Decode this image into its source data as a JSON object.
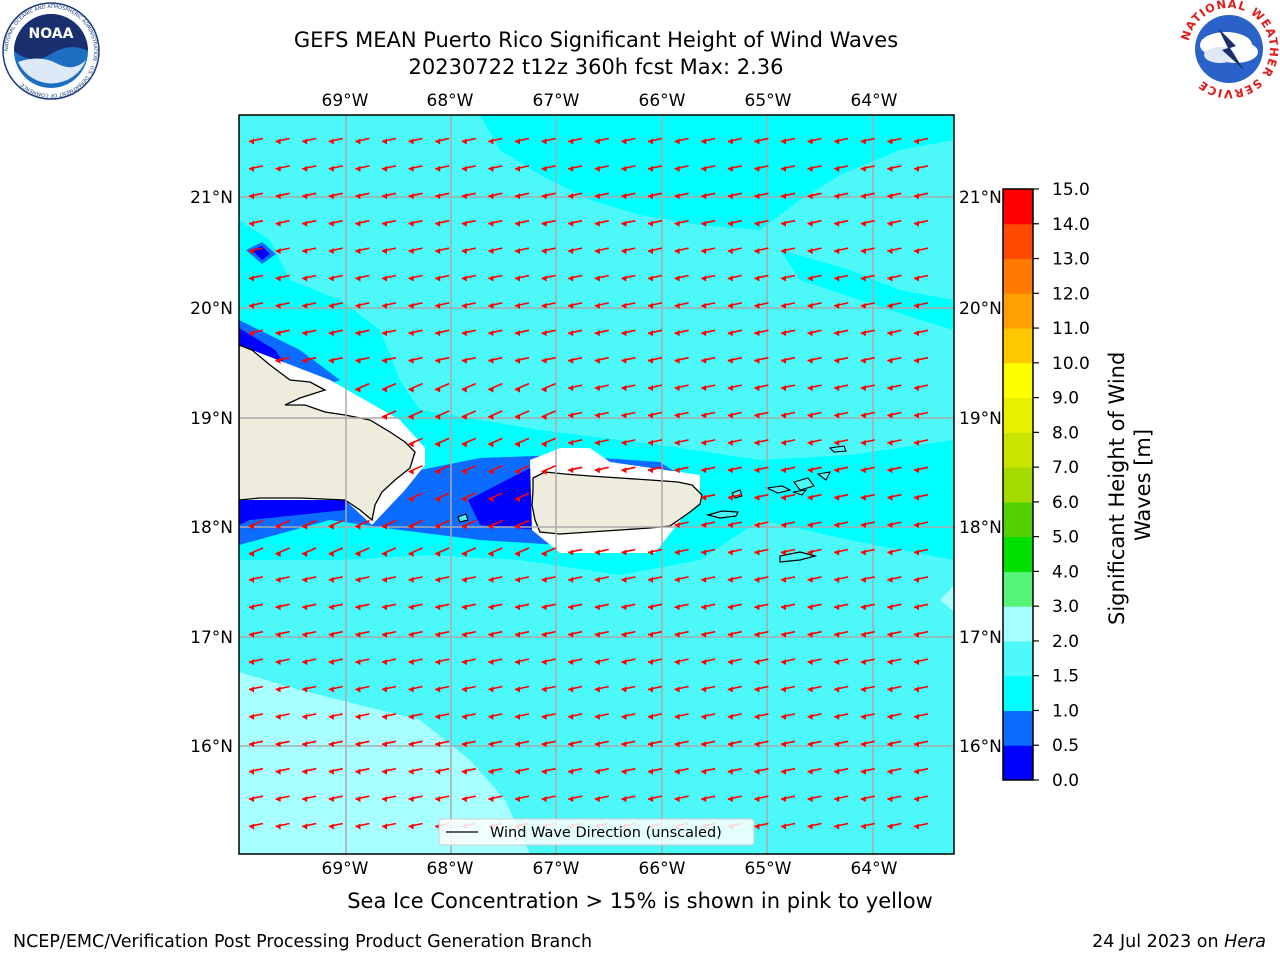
{
  "header": {
    "title_line1": "GEFS MEAN Puerto Rico Significant Height of Wind Waves",
    "title_line2": "20230722 t12z 360h fcst   Max: 2.36"
  },
  "logos": {
    "noaa": {
      "name": "NOAA",
      "ring_text": "NATIONAL OCEANIC AND ATMOSPHERIC ADMINISTRATION · U.S. DEPARTMENT OF COMMERCE"
    },
    "nws": {
      "ring_text": "NATIONAL WEATHER SERVICE"
    }
  },
  "map": {
    "lon_labels": [
      "69°W",
      "68°W",
      "67°W",
      "66°W",
      "65°W",
      "64°W"
    ],
    "lat_labels": [
      "21°N",
      "20°N",
      "19°N",
      "18°N",
      "17°N",
      "16°N"
    ],
    "legend_label": "Wind Wave Direction (unscaled)",
    "arrow_color": "#ff0000",
    "land_color": "#eeecdc",
    "dominant_wave_direction": "east to west"
  },
  "colorbar": {
    "label": "Significant Height of Wind Waves [m]",
    "ticks": [
      "0.0",
      "0.5",
      "1.0",
      "1.5",
      "2.0",
      "3.0",
      "4.0",
      "5.0",
      "6.0",
      "7.0",
      "8.0",
      "9.0",
      "10.0",
      "11.0",
      "12.0",
      "13.0",
      "14.0",
      "15.0"
    ],
    "colors": [
      "#0000ff",
      "#0c6cff",
      "#00ffff",
      "#4df8f8",
      "#a8ffff",
      "#56f57a",
      "#00e000",
      "#55d000",
      "#a4da00",
      "#c8e400",
      "#e8f000",
      "#ffff00",
      "#ffc800",
      "#ffa000",
      "#ff7800",
      "#ff4800",
      "#ff0000"
    ]
  },
  "notes": {
    "sea_ice": "Sea Ice Concentration > 15% is shown in pink to yellow"
  },
  "footer": {
    "left": "NCEP/EMC/Verification Post Processing Product Generation Branch",
    "date": "24 Jul 2023 on ",
    "host": "Hera"
  }
}
